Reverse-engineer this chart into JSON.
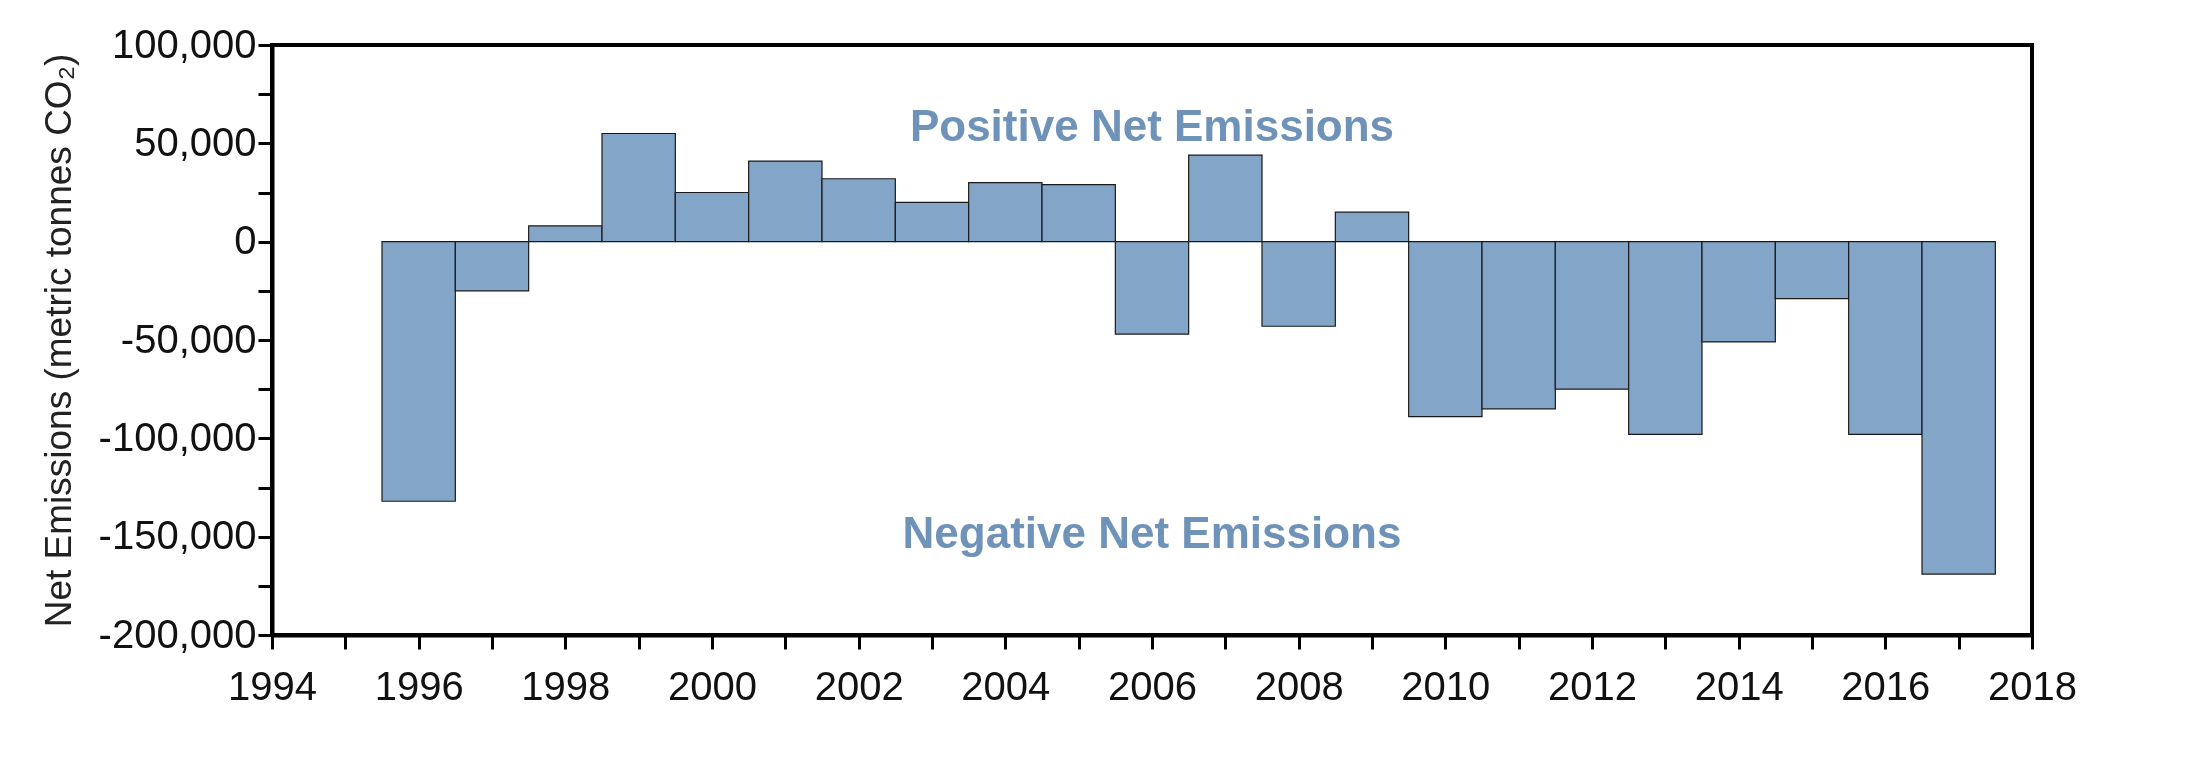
{
  "chart_data": {
    "type": "bar",
    "ylabel": "Net Emissions (metric tonnes CO₂)",
    "x": [
      1996,
      1997,
      1998,
      1999,
      2000,
      2001,
      2002,
      2003,
      2004,
      2005,
      2006,
      2007,
      2008,
      2009,
      2010,
      2011,
      2012,
      2013,
      2014,
      2015,
      2016,
      2017
    ],
    "values": [
      -132000,
      -25000,
      8000,
      55000,
      25000,
      41000,
      32000,
      20000,
      30000,
      29000,
      -47000,
      44000,
      -43000,
      15000,
      -89000,
      -85000,
      -75000,
      -98000,
      -51000,
      -29000,
      -98000,
      -169000
    ],
    "color": "#82a5c8",
    "xlim": [
      1994,
      2018
    ],
    "xticks": [
      1994,
      {
        "value": 1995,
        "label": null
      },
      1996,
      {
        "value": 1997,
        "label": null
      },
      1998,
      {
        "value": 1999,
        "label": null
      },
      2000,
      {
        "value": 2001,
        "label": null
      },
      2002,
      {
        "value": 2003,
        "label": null
      },
      2004,
      {
        "value": 2005,
        "label": null
      },
      2006,
      {
        "value": 2007,
        "label": null
      },
      2008,
      {
        "value": 2009,
        "label": null
      },
      2010,
      {
        "value": 2011,
        "label": null
      },
      2012,
      {
        "value": 2013,
        "label": null
      },
      2014,
      {
        "value": 2015,
        "label": null
      },
      2016,
      {
        "value": 2017,
        "label": null
      },
      2018
    ],
    "ylim": [
      -200000,
      100000
    ],
    "yticks": [
      {
        "value": -200000,
        "label": "-200,000"
      },
      {
        "value": -175000,
        "label": null
      },
      {
        "value": -150000,
        "label": "-150,000"
      },
      {
        "value": -125000,
        "label": null
      },
      {
        "value": -100000,
        "label": "-100,000"
      },
      {
        "value": -75000,
        "label": null
      },
      {
        "value": -50000,
        "label": "-50,000"
      },
      {
        "value": -25000,
        "label": null
      },
      0,
      {
        "value": 25000,
        "label": null
      },
      {
        "value": 50000,
        "label": "50,000"
      },
      {
        "value": 75000,
        "label": null
      },
      {
        "value": 100000,
        "label": "100,000"
      }
    ],
    "annotations": [
      "Positive Net Emissions",
      "Negative Net Emissions"
    ],
    "grid": false
  }
}
